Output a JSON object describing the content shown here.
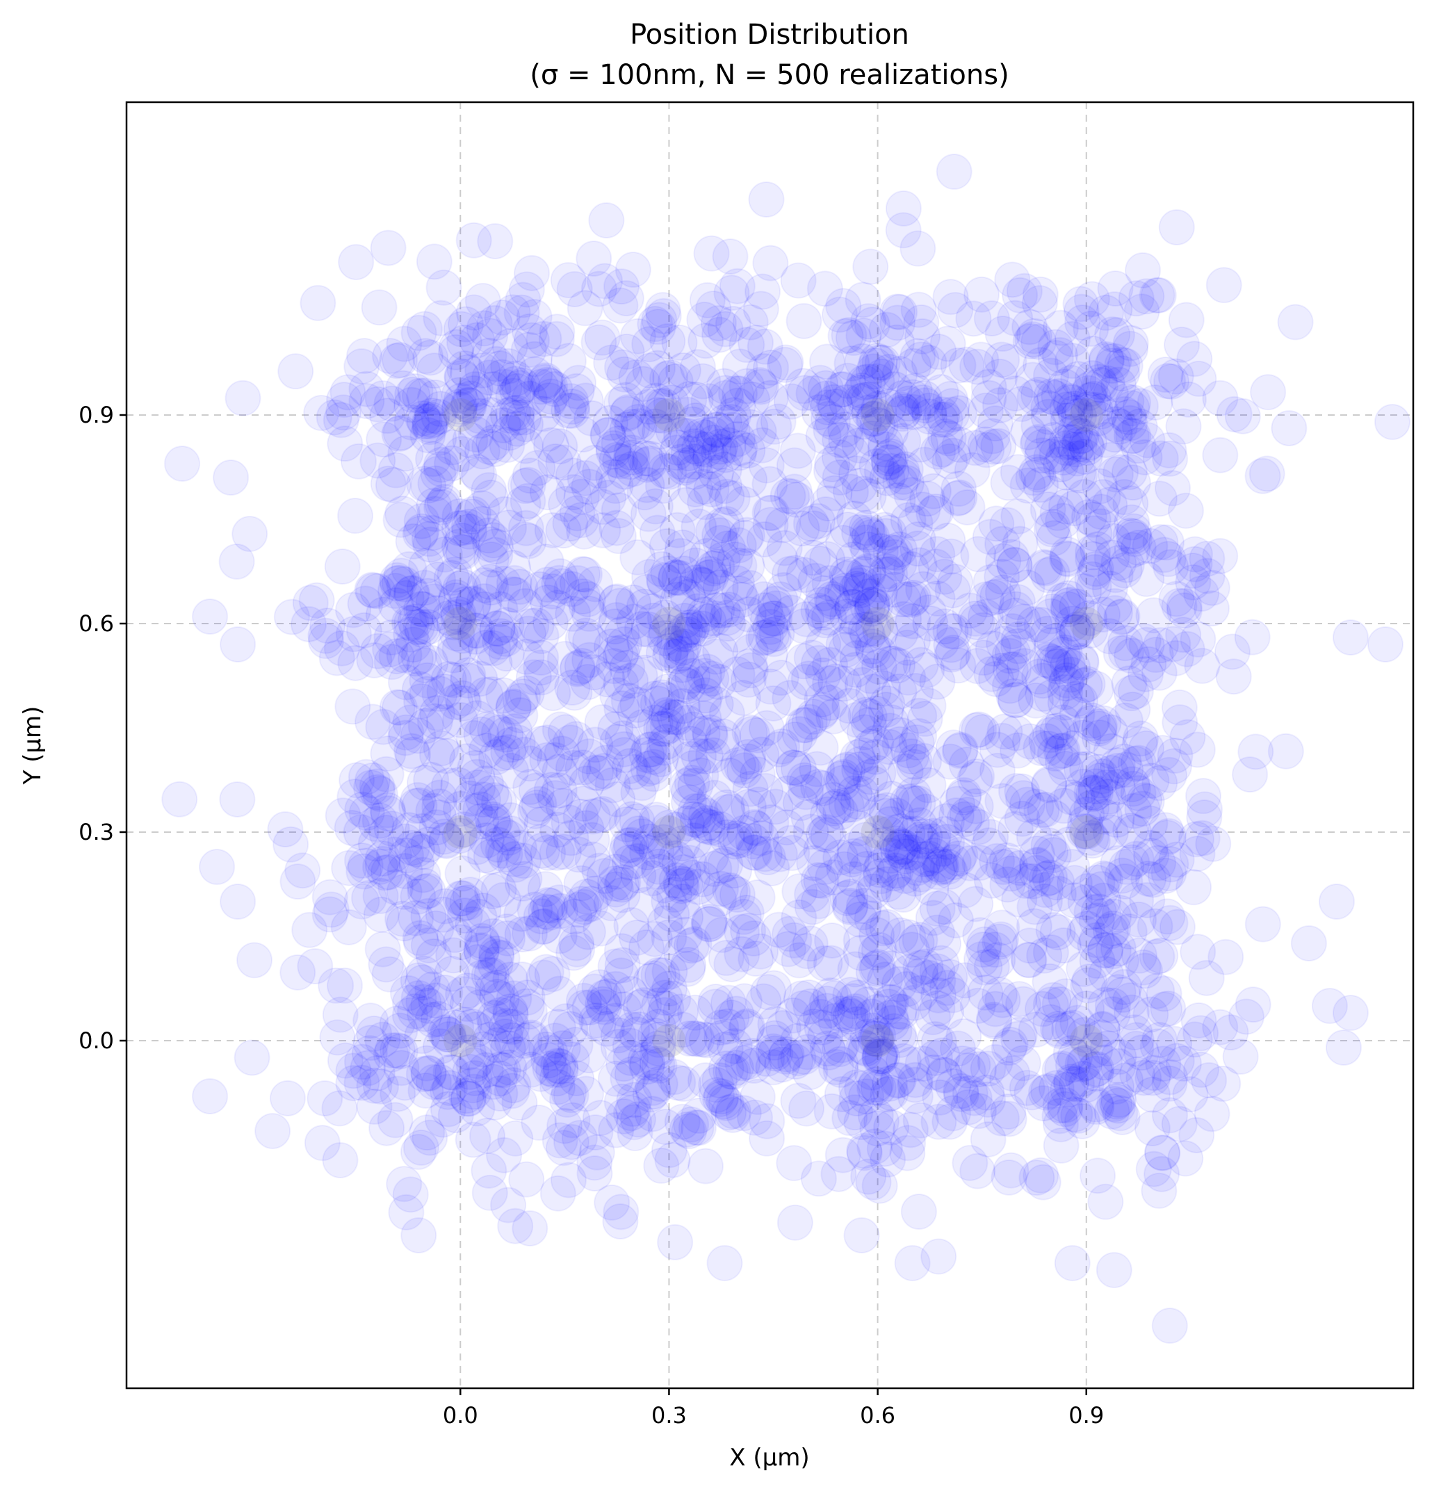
{
  "chart_data": {
    "type": "scatter",
    "title": "Position Distribution",
    "subtitle": "(σ = 100nm, N = 500 realizations)",
    "xlabel": "X (µm)",
    "ylabel": "Y (µm)",
    "xlim": [
      -0.48,
      1.37
    ],
    "ylim": [
      -0.5,
      1.35
    ],
    "xticks": [
      0.0,
      0.3,
      0.6,
      0.9
    ],
    "yticks": [
      0.0,
      0.3,
      0.6,
      0.9
    ],
    "xtick_labels": [
      "0.0",
      "0.3",
      "0.6",
      "0.9"
    ],
    "ytick_labels": [
      "0.0",
      "0.3",
      "0.6",
      "0.9"
    ],
    "grid": true,
    "lattice_x": [
      0.0,
      0.3,
      0.6,
      0.9
    ],
    "lattice_y": [
      0.0,
      0.3,
      0.6,
      0.9
    ],
    "sigma_um": 0.1,
    "realizations": 500,
    "marker_color": "#0000ff",
    "marker_alpha": 0.07,
    "lattice_marker_color": "#808080",
    "outlier_points": [
      {
        "x": -0.4,
        "y": 0.83
      },
      {
        "x": -0.33,
        "y": 0.81
      },
      {
        "x": -0.32,
        "y": 0.57
      },
      {
        "x": -0.36,
        "y": 0.61
      },
      {
        "x": -0.32,
        "y": 0.2
      },
      {
        "x": -0.35,
        "y": 0.25
      },
      {
        "x": -0.36,
        "y": -0.08
      },
      {
        "x": -0.27,
        "y": -0.13
      },
      {
        "x": 1.34,
        "y": 0.89
      },
      {
        "x": 1.33,
        "y": 0.57
      },
      {
        "x": 1.28,
        "y": 0.58
      },
      {
        "x": 1.26,
        "y": 0.2
      },
      {
        "x": 1.22,
        "y": 0.14
      },
      {
        "x": 1.25,
        "y": 0.05
      },
      {
        "x": 1.28,
        "y": 0.04
      },
      {
        "x": 1.27,
        "y": -0.01
      },
      {
        "x": 0.71,
        "y": 1.25
      },
      {
        "x": 0.44,
        "y": 1.21
      },
      {
        "x": 0.21,
        "y": 1.18
      },
      {
        "x": 1.03,
        "y": 1.17
      },
      {
        "x": -0.15,
        "y": 1.12
      },
      {
        "x": 0.05,
        "y": 1.15
      },
      {
        "x": 1.02,
        "y": -0.41
      },
      {
        "x": 0.38,
        "y": -0.32
      },
      {
        "x": 0.65,
        "y": -0.32
      },
      {
        "x": 0.88,
        "y": -0.32
      },
      {
        "x": 0.94,
        "y": -0.33
      },
      {
        "x": -0.06,
        "y": -0.28
      },
      {
        "x": 0.1,
        "y": -0.27
      },
      {
        "x": 0.23,
        "y": -0.26
      }
    ]
  }
}
